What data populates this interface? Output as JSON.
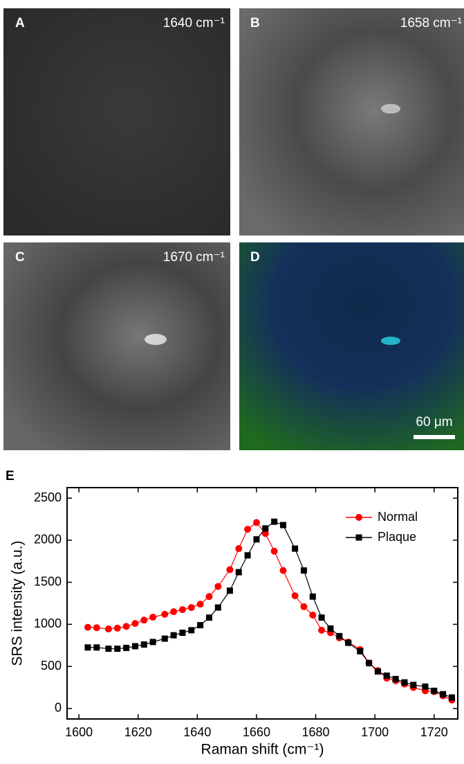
{
  "panels": [
    {
      "letter": "A",
      "label": "1640 cm⁻¹"
    },
    {
      "letter": "B",
      "label": "1658 cm⁻¹"
    },
    {
      "letter": "C",
      "label": "1670 cm⁻¹"
    },
    {
      "letter": "D",
      "label": "60 μm"
    }
  ],
  "chart_data": {
    "type": "line",
    "panel_letter": "E",
    "x_label": "Raman shift (cm⁻¹)",
    "y_label": "SRS intensity (a.u.)",
    "x": [
      1603,
      1606,
      1610,
      1613,
      1616,
      1619,
      1622,
      1625,
      1629,
      1632,
      1635,
      1638,
      1641,
      1644,
      1647,
      1651,
      1654,
      1657,
      1660,
      1663,
      1666,
      1669,
      1673,
      1676,
      1679,
      1682,
      1685,
      1688,
      1691,
      1695,
      1698,
      1701,
      1704,
      1707,
      1710,
      1713,
      1717,
      1720,
      1723,
      1726
    ],
    "series": [
      {
        "name": "Normal",
        "color": "#ff0000",
        "marker": "circle",
        "values": [
          965,
          960,
          945,
          955,
          975,
          1010,
          1050,
          1085,
          1120,
          1150,
          1175,
          1200,
          1240,
          1330,
          1450,
          1650,
          1900,
          2130,
          2210,
          2080,
          1870,
          1640,
          1340,
          1210,
          1110,
          930,
          900,
          840,
          790,
          700,
          540,
          450,
          360,
          330,
          290,
          250,
          210,
          200,
          150,
          100
        ]
      },
      {
        "name": "Plaque",
        "color": "#000000",
        "marker": "square",
        "values": [
          725,
          725,
          710,
          710,
          720,
          740,
          760,
          790,
          830,
          870,
          900,
          930,
          990,
          1080,
          1200,
          1400,
          1620,
          1820,
          2010,
          2140,
          2220,
          2180,
          1900,
          1640,
          1330,
          1080,
          950,
          860,
          780,
          680,
          540,
          440,
          390,
          350,
          310,
          280,
          260,
          210,
          170,
          130
        ]
      }
    ],
    "xlim": [
      1596,
      1728
    ],
    "xticks": [
      1600,
      1620,
      1640,
      1660,
      1680,
      1700,
      1720
    ],
    "ylim": [
      -125,
      2625
    ],
    "yticks": [
      0,
      500,
      1000,
      1500,
      2000,
      2500
    ],
    "legend": "top-right"
  }
}
